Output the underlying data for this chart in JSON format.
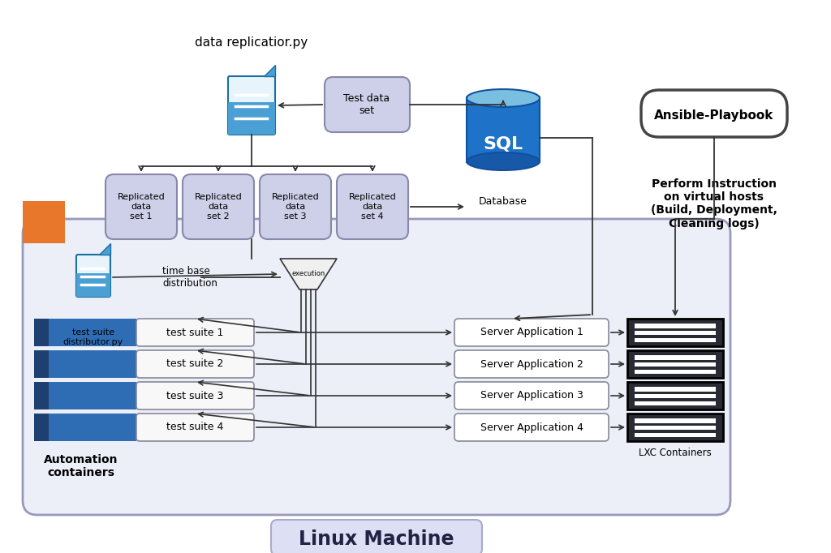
{
  "bg_color": "#ffffff",
  "linux_machine_label": "Linux Machine",
  "ansible_label": "Ansible-Playbook",
  "ansible_text": "Perform Instruction\non virtual hosts\n(Build, Deployment,\nCleaning logs)",
  "data_replication_label": "data replicatior.py",
  "test_data_set_label": "Test data\nset",
  "replicated_sets": [
    "Replicated\ndata\nset 1",
    "Replicated\ndata\nset 2",
    "Replicated\ndata\nset 3",
    "Replicated\ndata\nset 4"
  ],
  "database_label": "Database",
  "execution_label": "execution",
  "test_suite_distributor_label": "test suite\ndistributor.py",
  "time_base_label": "time base\ndistribution",
  "test_suites": [
    "test suite 1",
    "test suite 2",
    "test suite 3",
    "test suite 4"
  ],
  "server_apps": [
    "Server Application 1",
    "Server Application 2",
    "Server Application 3",
    "Server Application 4"
  ],
  "automation_label": "Automation\ncontainers",
  "lxc_label": "LXC Containers",
  "orange_color": "#E8762B",
  "rep_box_fill": "#cdd0e8",
  "rep_box_edge": "#8888aa",
  "test_data_fill": "#cdd0e8",
  "lxc_fill": "#2a2a35",
  "lxc_stripe": "#ffffff",
  "doc_blue_main": "#4a9fd4",
  "doc_blue_dark": "#1a6ea0",
  "doc_white": "#e8f4fc",
  "sql_blue": "#1e72c8",
  "sql_light": "#7bbfe0",
  "auto_dark": "#1e4070",
  "auto_mid": "#2e6db4",
  "suite_box_fill": "#f8f8f8",
  "suite_box_edge": "#888899",
  "sa_box_fill": "#ffffff",
  "sa_box_edge": "#888899",
  "linux_bg": "#eceef8",
  "linux_edge": "#9999bb"
}
